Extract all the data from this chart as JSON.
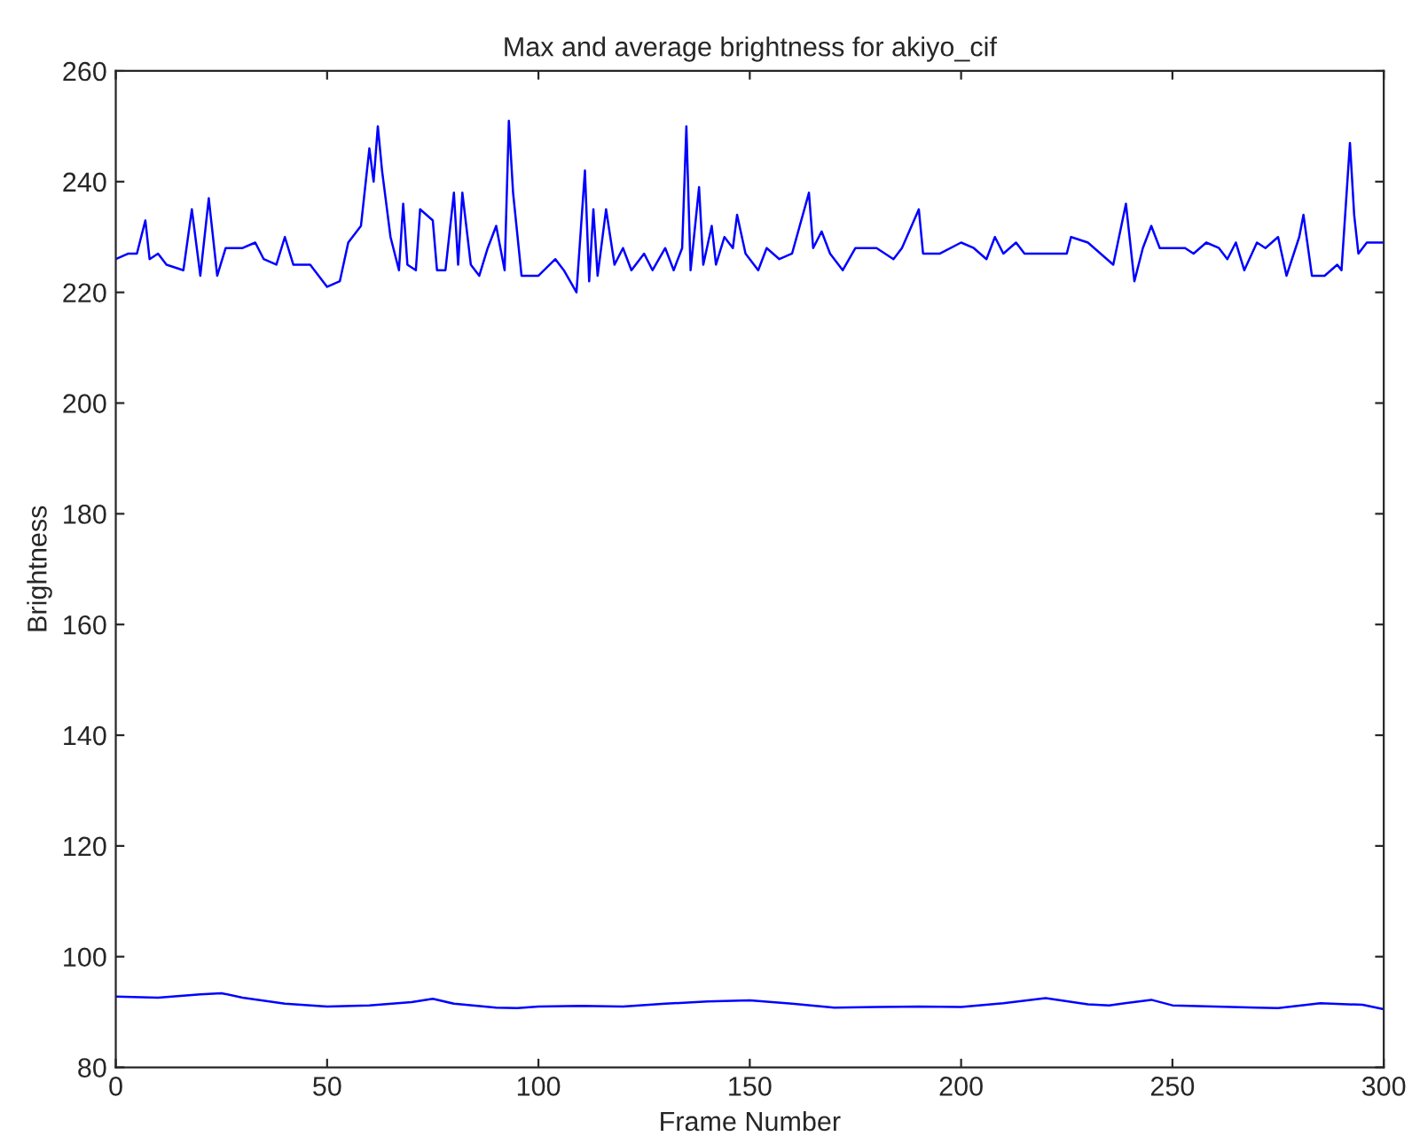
{
  "chart_data": {
    "type": "line",
    "title": "Max and average brightness for akiyo_cif",
    "xlabel": "Frame Number",
    "ylabel": "Brightness",
    "xlim": [
      0,
      300
    ],
    "ylim": [
      80,
      260
    ],
    "xticks": [
      0,
      50,
      100,
      150,
      200,
      250,
      300
    ],
    "yticks": [
      80,
      100,
      120,
      140,
      160,
      180,
      200,
      220,
      240,
      260
    ],
    "grid": false,
    "legend": false,
    "series": [
      {
        "color": "#0000ff",
        "x": [
          0,
          3,
          5,
          7,
          8,
          10,
          12,
          16,
          18,
          20,
          22,
          24,
          26,
          30,
          33,
          35,
          38,
          40,
          42,
          46,
          50,
          53,
          55,
          58,
          60,
          61,
          62,
          63,
          65,
          67,
          68,
          69,
          71,
          72,
          75,
          76,
          78,
          80,
          81,
          82,
          84,
          86,
          88,
          90,
          92,
          93,
          94,
          96,
          100,
          104,
          106,
          109,
          111,
          112,
          113,
          114,
          116,
          118,
          120,
          122,
          125,
          127,
          130,
          132,
          134,
          135,
          136,
          138,
          139,
          141,
          142,
          144,
          146,
          147,
          149,
          152,
          154,
          157,
          160,
          164,
          165,
          167,
          169,
          172,
          175,
          180,
          184,
          186,
          190,
          191,
          195,
          200,
          203,
          206,
          208,
          210,
          213,
          215,
          220,
          225,
          226,
          230,
          233,
          236,
          239,
          241,
          243,
          245,
          247,
          250,
          253,
          255,
          258,
          261,
          263,
          265,
          267,
          270,
          272,
          275,
          277,
          280,
          281,
          283,
          286,
          289,
          290,
          292,
          293,
          294,
          296,
          300
        ],
        "values": [
          226,
          227,
          227,
          233,
          226,
          227,
          225,
          224,
          235,
          223,
          237,
          223,
          228,
          228,
          229,
          226,
          225,
          230,
          225,
          225,
          221,
          222,
          229,
          232,
          246,
          240,
          250,
          242,
          230,
          224,
          236,
          225,
          224,
          235,
          233,
          224,
          224,
          238,
          225,
          238,
          225,
          223,
          228,
          232,
          224,
          251,
          238,
          223,
          223,
          226,
          224,
          220,
          242,
          222,
          235,
          223,
          235,
          225,
          228,
          224,
          227,
          224,
          228,
          224,
          228,
          250,
          224,
          239,
          225,
          232,
          225,
          230,
          228,
          234,
          227,
          224,
          228,
          226,
          227,
          238,
          228,
          231,
          227,
          224,
          228,
          228,
          226,
          228,
          235,
          227,
          227,
          229,
          228,
          226,
          230,
          227,
          229,
          227,
          227,
          227,
          230,
          229,
          227,
          225,
          236,
          222,
          228,
          232,
          228,
          228,
          228,
          227,
          229,
          228,
          226,
          229,
          224,
          229,
          228,
          230,
          223,
          230,
          234,
          223,
          223,
          225,
          224,
          247,
          234,
          227,
          229,
          229
        ]
      },
      {
        "color": "#0000ff",
        "x": [
          0,
          10,
          20,
          25,
          30,
          40,
          50,
          60,
          70,
          75,
          80,
          90,
          95,
          100,
          110,
          120,
          130,
          140,
          150,
          160,
          170,
          180,
          190,
          200,
          210,
          220,
          230,
          235,
          240,
          245,
          250,
          260,
          270,
          275,
          285,
          295,
          300
        ],
        "values": [
          92.8,
          92.6,
          93.2,
          93.4,
          92.6,
          91.5,
          91.0,
          91.2,
          91.8,
          92.4,
          91.5,
          90.8,
          90.7,
          91.0,
          91.1,
          91.0,
          91.5,
          91.9,
          92.1,
          91.5,
          90.8,
          90.9,
          91.0,
          90.9,
          91.6,
          92.5,
          91.4,
          91.2,
          91.7,
          92.2,
          91.2,
          91.0,
          90.8,
          90.7,
          91.6,
          91.3,
          90.5
        ]
      }
    ]
  }
}
